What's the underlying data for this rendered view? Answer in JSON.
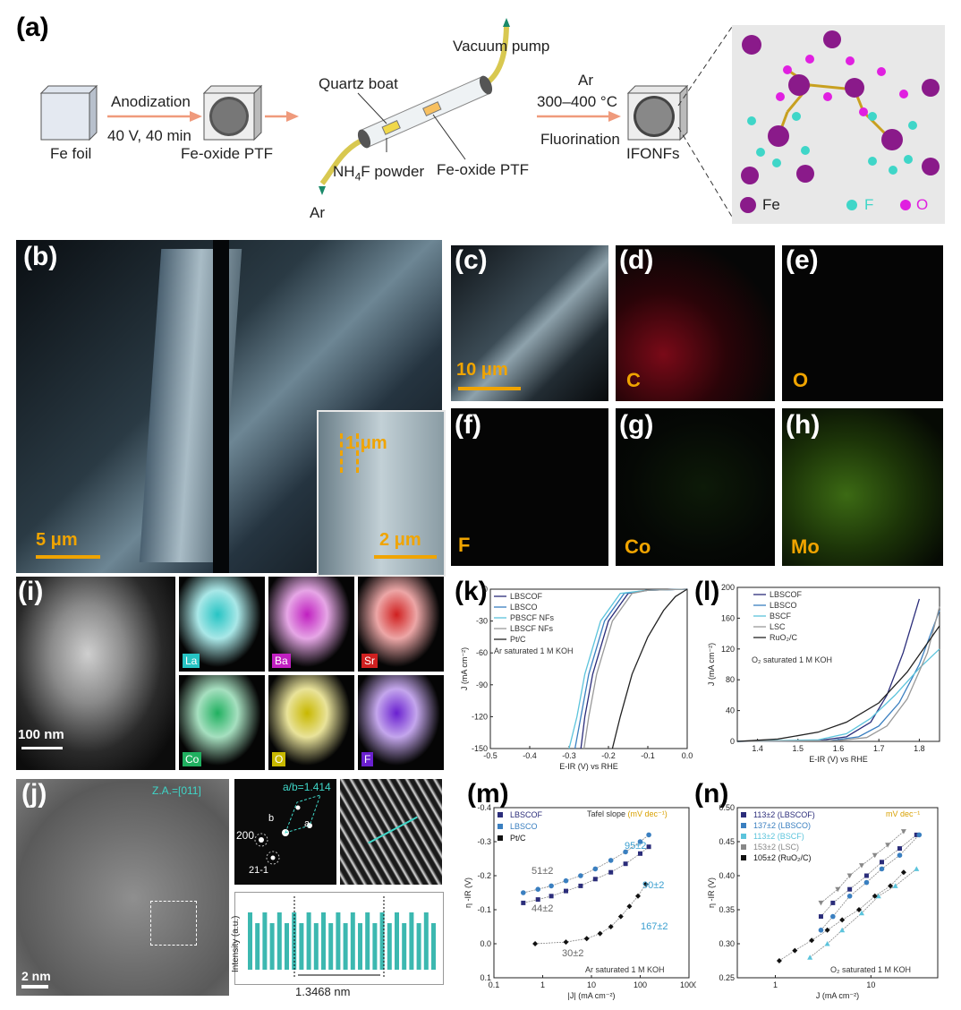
{
  "panel_a": {
    "letter": "(a)",
    "fe_foil": "Fe foil",
    "anodization": "Anodization",
    "anod_cond": "40 V, 40 min",
    "fe_oxide_ptf": "Fe-oxide PTF",
    "quartz_boat": "Quartz boat",
    "vacuum_pump": "Vacuum pump",
    "nh4f": "NH",
    "nh4f_sub": "4",
    "nh4f_rest": "F powder",
    "fe_oxide_ptf2": "Fe-oxide PTF",
    "ar_in": "Ar",
    "ar_top": "Ar",
    "temp": "300–400 °C",
    "fluorination": "Fluorination",
    "ifonfs": "IFONFs",
    "legend": [
      {
        "label": "Fe",
        "color": "#8a1a8a"
      },
      {
        "label": "F",
        "color": "#3fd6c8"
      },
      {
        "label": "O",
        "color": "#e020e0"
      }
    ]
  },
  "panel_b": {
    "letter": "(b)",
    "scale_main": "5 μm",
    "scale_inset": "2 μm",
    "inset_dim": "1 μm"
  },
  "panel_c": {
    "letter": "(c)",
    "scale": "10 μm"
  },
  "panel_d": {
    "letter": "(d)",
    "element": "C"
  },
  "panel_e": {
    "letter": "(e)",
    "element": "O"
  },
  "panel_f": {
    "letter": "(f)",
    "element": "F"
  },
  "panel_g": {
    "letter": "(g)",
    "element": "Co"
  },
  "panel_h": {
    "letter": "(h)",
    "element": "Mo"
  },
  "panel_i": {
    "letter": "(i)",
    "scale": "100 nm",
    "maps": [
      {
        "label": "La",
        "color": "#27c4c4"
      },
      {
        "label": "Ba",
        "color": "#c020c0"
      },
      {
        "label": "Sr",
        "color": "#d02020"
      },
      {
        "label": "Co",
        "color": "#20b060"
      },
      {
        "label": "O",
        "color": "#c8b800"
      },
      {
        "label": "F",
        "color": "#6a20d0"
      }
    ]
  },
  "panel_j": {
    "letter": "(j)",
    "zone_axis": "Z.A.=[011]",
    "ratio": "a/b=1.414",
    "spot_200": "200",
    "spot_211": "21-1",
    "spot_a": "a",
    "spot_b": "b",
    "scale": "2 nm",
    "ylabel": "Intensity (a.u.)",
    "distance": "1.3468 nm"
  },
  "chart_data": [
    {
      "panel": "(k)",
      "type": "line",
      "xlabel": "E-IR (V) vs RHE",
      "ylabel": "J (mA cm⁻²)",
      "xlim": [
        -0.5,
        0.0
      ],
      "ylim": [
        -150,
        0
      ],
      "xticks": [
        "-0.5",
        "-0.4",
        "-0.3",
        "-0.2",
        "-0.1",
        "0.0"
      ],
      "yticks": [
        "0",
        "-30",
        "-60",
        "-90",
        "-120",
        "-150"
      ],
      "annotation": "Ar saturated 1 M KOH",
      "series": [
        {
          "name": "LBSCOF",
          "color": "#2b2d7a",
          "x": [
            -0.27,
            -0.26,
            -0.24,
            -0.2,
            -0.15,
            -0.1,
            -0.05,
            0.0
          ],
          "y": [
            -150,
            -120,
            -80,
            -30,
            -4,
            -1,
            -0.5,
            0
          ]
        },
        {
          "name": "LBSCO",
          "color": "#3a7fc0",
          "x": [
            -0.285,
            -0.27,
            -0.25,
            -0.21,
            -0.16,
            -0.1,
            -0.05,
            0.0
          ],
          "y": [
            -150,
            -120,
            -80,
            -30,
            -4,
            -1,
            -0.5,
            0
          ]
        },
        {
          "name": "PBSCF NFs",
          "color": "#5cc4dc",
          "x": [
            -0.3,
            -0.28,
            -0.26,
            -0.22,
            -0.17,
            -0.1,
            -0.05,
            0.0
          ],
          "y": [
            -150,
            -120,
            -80,
            -30,
            -4,
            -1,
            -0.5,
            0
          ]
        },
        {
          "name": "LBSCF NFs",
          "color": "#999999",
          "x": [
            -0.262,
            -0.25,
            -0.23,
            -0.19,
            -0.14,
            -0.1,
            -0.05,
            0.0
          ],
          "y": [
            -150,
            -120,
            -80,
            -30,
            -4,
            -1,
            -0.5,
            0
          ]
        },
        {
          "name": "Pt/C",
          "color": "#222222",
          "x": [
            -0.19,
            -0.17,
            -0.14,
            -0.1,
            -0.06,
            -0.03,
            0.0
          ],
          "y": [
            -150,
            -120,
            -80,
            -45,
            -20,
            -7,
            0
          ]
        }
      ]
    },
    {
      "panel": "(l)",
      "type": "line",
      "xlabel": "E-IR (V) vs RHE",
      "ylabel": "J (mA cm⁻²)",
      "xlim": [
        1.35,
        1.85
      ],
      "ylim": [
        0,
        200
      ],
      "xticks": [
        "1.4",
        "1.5",
        "1.6",
        "1.7",
        "1.8"
      ],
      "yticks": [
        "0",
        "40",
        "80",
        "120",
        "160",
        "200"
      ],
      "annotation": "O₂ saturated 1 M KOH",
      "series": [
        {
          "name": "LBSCOF",
          "color": "#2b2d7a",
          "x": [
            1.35,
            1.55,
            1.62,
            1.68,
            1.72,
            1.76,
            1.8
          ],
          "y": [
            0,
            1,
            6,
            25,
            60,
            115,
            185
          ]
        },
        {
          "name": "LBSCO",
          "color": "#3a7fc0",
          "x": [
            1.35,
            1.58,
            1.65,
            1.7,
            1.75,
            1.8,
            1.85
          ],
          "y": [
            0,
            1,
            6,
            20,
            50,
            100,
            170
          ]
        },
        {
          "name": "BSCF",
          "color": "#5cc4dc",
          "x": [
            1.35,
            1.55,
            1.62,
            1.68,
            1.74,
            1.8,
            1.85
          ],
          "y": [
            0,
            2,
            10,
            30,
            60,
            95,
            120
          ]
        },
        {
          "name": "LSC",
          "color": "#999999",
          "x": [
            1.35,
            1.6,
            1.67,
            1.72,
            1.77,
            1.82,
            1.85
          ],
          "y": [
            0,
            1,
            5,
            20,
            55,
            115,
            175
          ]
        },
        {
          "name": "RuO₂/C",
          "color": "#222222",
          "x": [
            1.35,
            1.45,
            1.55,
            1.62,
            1.7,
            1.77,
            1.85
          ],
          "y": [
            0,
            3,
            12,
            25,
            50,
            90,
            150
          ]
        }
      ]
    },
    {
      "panel": "(m)",
      "type": "scatter",
      "xlabel": "|J| (mA cm⁻²)",
      "ylabel": "η -IR (V)",
      "xscale": "log",
      "xlim": [
        0.1,
        1000
      ],
      "ylim": [
        0.1,
        -0.4
      ],
      "xticks": [
        "0.1",
        "1",
        "10",
        "100",
        "1000"
      ],
      "yticks": [
        "-0.4",
        "-0.3",
        "-0.2",
        "-0.1",
        "0.0",
        "0.1"
      ],
      "annotation": "Ar saturated 1 M KOH",
      "legend_title": "Tafel slope",
      "legend_unit": "(mV dec⁻¹)",
      "labels": [
        "51±2",
        "44±2",
        "30±2",
        "95±2",
        "90±2",
        "167±2"
      ],
      "series": [
        {
          "name": "LBSCOF",
          "color": "#2b2d7a",
          "marker": "square",
          "x": [
            0.4,
            0.8,
            1.5,
            3,
            6,
            12,
            25,
            50,
            100,
            150
          ],
          "y": [
            -0.12,
            -0.13,
            -0.14,
            -0.155,
            -0.17,
            -0.19,
            -0.21,
            -0.235,
            -0.265,
            -0.285
          ]
        },
        {
          "name": "LBSCO",
          "color": "#3a7fc0",
          "marker": "circle",
          "x": [
            0.4,
            0.8,
            1.5,
            3,
            6,
            12,
            25,
            50,
            100,
            150
          ],
          "y": [
            -0.15,
            -0.16,
            -0.17,
            -0.185,
            -0.2,
            -0.22,
            -0.245,
            -0.27,
            -0.3,
            -0.32
          ]
        },
        {
          "name": "Pt/C",
          "color": "#111111",
          "marker": "diamond",
          "x": [
            0.7,
            3,
            8,
            15,
            25,
            40,
            60,
            90,
            130
          ],
          "y": [
            0.0,
            -0.005,
            -0.015,
            -0.03,
            -0.05,
            -0.08,
            -0.11,
            -0.14,
            -0.175
          ]
        }
      ]
    },
    {
      "panel": "(n)",
      "type": "scatter",
      "xlabel": "J (mA cm⁻²)",
      "ylabel": "η -IR (V)",
      "xscale": "log",
      "xlim": [
        0.4,
        50
      ],
      "ylim": [
        0.25,
        0.5
      ],
      "xticks": [
        "1",
        "10"
      ],
      "yticks": [
        "0.25",
        "0.30",
        "0.35",
        "0.40",
        "0.45",
        "0.50"
      ],
      "annotation": "O₂ saturated 1 M KOH",
      "legend_unit": "mV dec⁻¹",
      "series": [
        {
          "name": "113±2 (LBSCOF)",
          "color": "#2b2d7a",
          "marker": "square",
          "x": [
            3,
            4,
            6,
            9,
            13,
            20,
            30
          ],
          "y": [
            0.34,
            0.36,
            0.38,
            0.4,
            0.42,
            0.44,
            0.46
          ]
        },
        {
          "name": "137±2 (LBSCO)",
          "color": "#3a7fc0",
          "marker": "circle",
          "x": [
            3,
            4,
            6,
            9,
            13,
            20,
            32
          ],
          "y": [
            0.32,
            0.34,
            0.37,
            0.39,
            0.41,
            0.43,
            0.46
          ]
        },
        {
          "name": "113±2 (BSCF)",
          "color": "#5cc4dc",
          "marker": "triangle",
          "x": [
            2.3,
            3.5,
            5,
            8,
            12,
            18,
            30
          ],
          "y": [
            0.28,
            0.3,
            0.32,
            0.345,
            0.37,
            0.385,
            0.41
          ]
        },
        {
          "name": "153±2 (LSC)",
          "color": "#888888",
          "marker": "triangle-down",
          "x": [
            3,
            4.5,
            6,
            8,
            11,
            15,
            22
          ],
          "y": [
            0.36,
            0.38,
            0.4,
            0.415,
            0.43,
            0.445,
            0.465
          ]
        },
        {
          "name": "105±2 (RuO₂/C)",
          "color": "#111111",
          "marker": "diamond",
          "x": [
            1.1,
            1.6,
            2.4,
            3.5,
            5,
            7.5,
            11,
            16,
            22
          ],
          "y": [
            0.275,
            0.29,
            0.305,
            0.32,
            0.335,
            0.35,
            0.37,
            0.385,
            0.405
          ]
        }
      ]
    }
  ]
}
